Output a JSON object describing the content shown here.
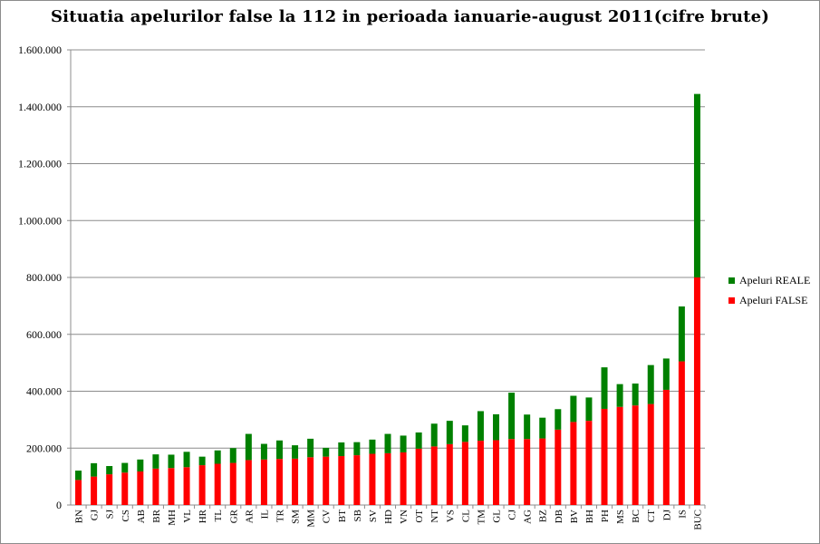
{
  "chart_data": {
    "type": "bar",
    "stacked": true,
    "title": "Situatia apelurilor false la 112 in perioada ianuarie-august 2011(cifre brute)",
    "xlabel": "",
    "ylabel": "",
    "ylim": [
      0,
      1600000
    ],
    "yticks": [
      0,
      200000,
      400000,
      600000,
      800000,
      1000000,
      1200000,
      1400000,
      1600000
    ],
    "ytick_labels": [
      "0",
      "200.000",
      "400.000",
      "600.000",
      "800.000",
      "1.000.000",
      "1.200.000",
      "1.400.000",
      "1.600.000"
    ],
    "grid": true,
    "legend_position": "right",
    "categories": [
      "BN",
      "GJ",
      "SJ",
      "CS",
      "AB",
      "BR",
      "MH",
      "VL",
      "HR",
      "TL",
      "GR",
      "AR",
      "IL",
      "TR",
      "SM",
      "MM",
      "CV",
      "BT",
      "SB",
      "SV",
      "HD",
      "VN",
      "OT",
      "NT",
      "VS",
      "CL",
      "TM",
      "GL",
      "CJ",
      "AG",
      "BZ",
      "DB",
      "BV",
      "BH",
      "PH",
      "MS",
      "BC",
      "CT",
      "DJ",
      "IS",
      "BUC"
    ],
    "series": [
      {
        "name": "Apeluri FALSE",
        "color": "#ff0000",
        "values": [
          88000,
          100000,
          108000,
          114000,
          118000,
          128000,
          130000,
          133000,
          140000,
          145000,
          148000,
          158000,
          160000,
          162000,
          163000,
          168000,
          170000,
          172000,
          175000,
          180000,
          182000,
          185000,
          198000,
          206000,
          214000,
          222000,
          226000,
          228000,
          232000,
          232000,
          234000,
          265000,
          292000,
          296000,
          338000,
          345000,
          350000,
          355000,
          405000,
          505000,
          800000
        ]
      },
      {
        "name": "Apeluri REALE",
        "color": "#008000",
        "values": [
          33000,
          47000,
          29000,
          34000,
          42000,
          50000,
          47000,
          54000,
          30000,
          47000,
          52000,
          92000,
          55000,
          65000,
          47000,
          65000,
          31000,
          48000,
          46000,
          50000,
          68000,
          59000,
          57000,
          80000,
          82000,
          58000,
          104000,
          91000,
          163000,
          86000,
          73000,
          72000,
          92000,
          82000,
          146000,
          80000,
          77000,
          137000,
          110000,
          193000,
          645000
        ]
      }
    ]
  }
}
